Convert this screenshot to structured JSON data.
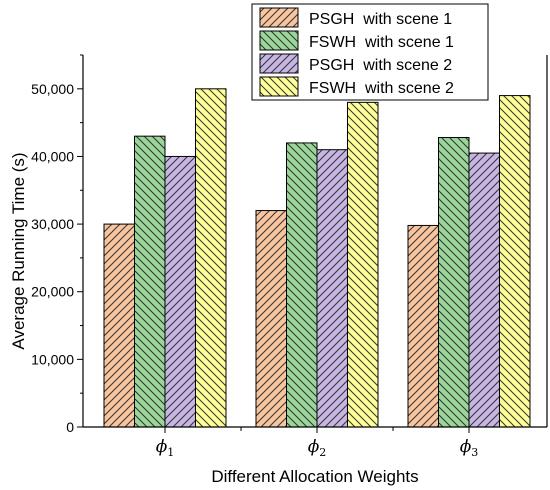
{
  "chart_data": {
    "type": "bar",
    "xlabel": "Different Allocation Weights",
    "ylabel": "Average Running Time (s)",
    "categories": [
      {
        "symbol": "ϕ",
        "sub": "1"
      },
      {
        "symbol": "ϕ",
        "sub": "2"
      },
      {
        "symbol": "ϕ",
        "sub": "3"
      }
    ],
    "ylim": [
      0,
      55000
    ],
    "yticks": [
      0,
      10000,
      20000,
      30000,
      40000,
      50000
    ],
    "ytick_labels": [
      "0",
      "10,000",
      "20,000",
      "30,000",
      "40,000",
      "50,000"
    ],
    "grid": false,
    "legend_position": "top-right",
    "series": [
      {
        "name": "PSGH  with scene 1",
        "values": [
          30000,
          32000,
          29800
        ],
        "color": "#f9c59f",
        "hatch": "diag-up"
      },
      {
        "name": "FSWH  with scene 1",
        "values": [
          43000,
          42000,
          42800
        ],
        "color": "#9ad69a",
        "hatch": "diag-down"
      },
      {
        "name": "PSGH  with scene 2",
        "values": [
          40000,
          41000,
          40500
        ],
        "color": "#c7b5e3",
        "hatch": "diag-up"
      },
      {
        "name": "FSWH  with scene 2",
        "values": [
          50000,
          48000,
          49000
        ],
        "color": "#ffff99",
        "hatch": "diag-down"
      }
    ]
  }
}
